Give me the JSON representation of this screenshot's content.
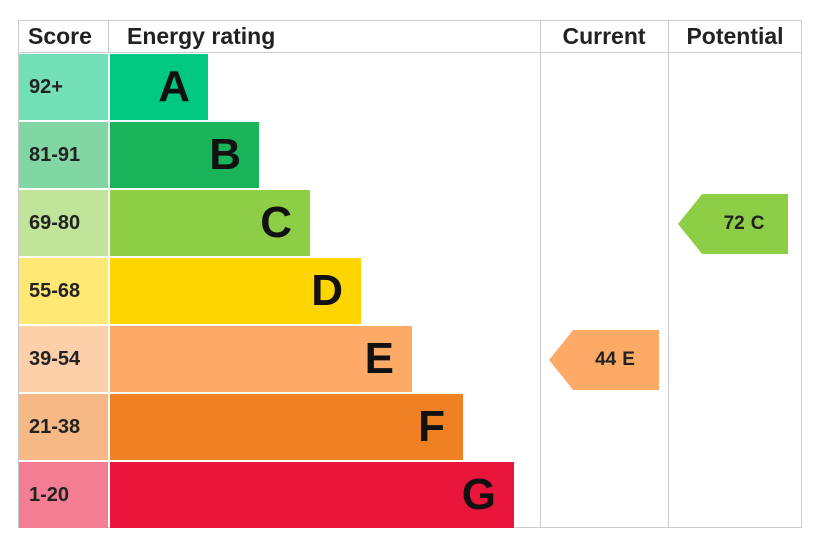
{
  "header": {
    "score": "Score",
    "rating": "Energy rating",
    "current": "Current",
    "potential": "Potential"
  },
  "bands": [
    {
      "score": "92+",
      "letter": "A",
      "color": "#00c781"
    },
    {
      "score": "81-91",
      "letter": "B",
      "color": "#19b459"
    },
    {
      "score": "69-80",
      "letter": "C",
      "color": "#8dce46"
    },
    {
      "score": "55-68",
      "letter": "D",
      "color": "#ffd500"
    },
    {
      "score": "39-54",
      "letter": "E",
      "color": "#fcaa65"
    },
    {
      "score": "21-38",
      "letter": "F",
      "color": "#ef8023"
    },
    {
      "score": "1-20",
      "letter": "G",
      "color": "#e9153b"
    }
  ],
  "current": {
    "score": 44,
    "rating": "E"
  },
  "potential": {
    "score": 72,
    "rating": "C"
  }
}
